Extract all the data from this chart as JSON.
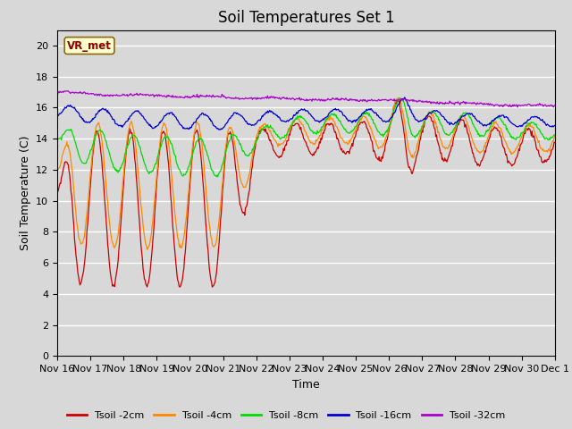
{
  "title": "Soil Temperatures Set 1",
  "xlabel": "Time",
  "ylabel": "Soil Temperature (C)",
  "ylim": [
    0,
    21
  ],
  "yticks": [
    0,
    2,
    4,
    6,
    8,
    10,
    12,
    14,
    16,
    18,
    20
  ],
  "background_color": "#d8d8d8",
  "plot_bg_color": "#d8d8d8",
  "grid_color": "#ffffff",
  "colors": {
    "Tsoil -2cm": "#cc0000",
    "Tsoil -4cm": "#ff8800",
    "Tsoil -8cm": "#00dd00",
    "Tsoil -16cm": "#0000cc",
    "Tsoil -32cm": "#aa00cc"
  },
  "legend_label": "VR_met",
  "xtick_labels": [
    "Nov 16",
    "Nov 17",
    "Nov 18",
    "Nov 19",
    "Nov 20",
    "Nov 21",
    "Nov 22",
    "Nov 23",
    "Nov 24",
    "Nov 25",
    "Nov 26",
    "Nov 27",
    "Nov 28",
    "Nov 29",
    "Nov 30",
    "Dec 1"
  ],
  "title_fontsize": 12,
  "axis_fontsize": 9,
  "tick_fontsize": 8
}
